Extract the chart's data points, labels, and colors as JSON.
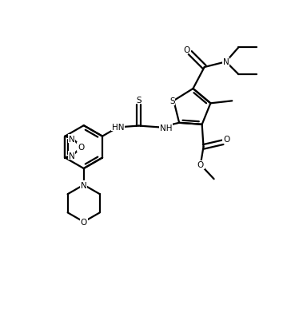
{
  "background_color": "#ffffff",
  "line_color": "#000000",
  "line_width": 1.6,
  "figsize": [
    3.74,
    4.02
  ],
  "dpi": 100,
  "xlim": [
    0,
    10
  ],
  "ylim": [
    0,
    10.75
  ]
}
